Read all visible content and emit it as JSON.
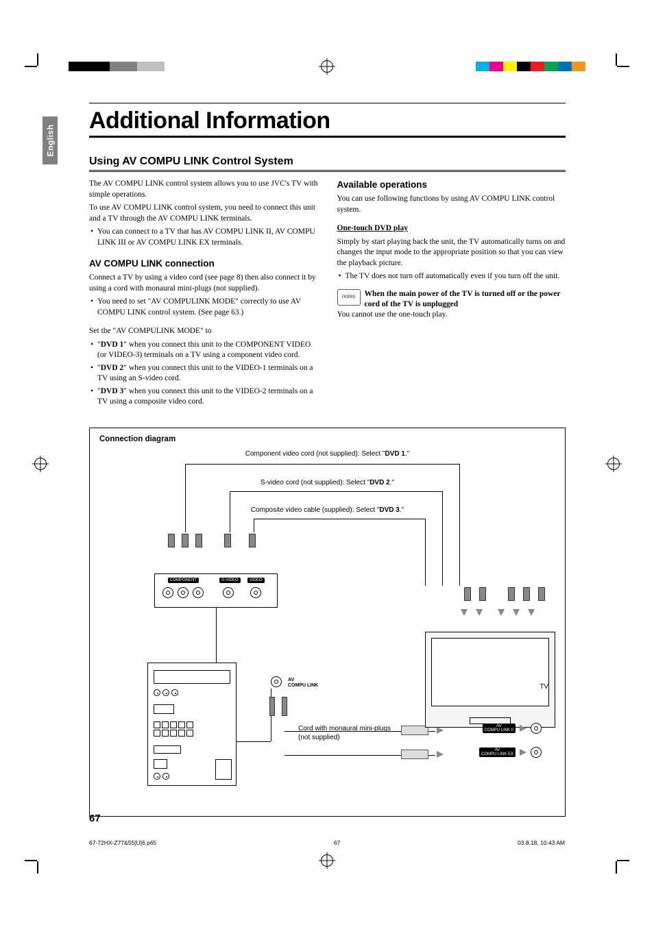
{
  "meta": {
    "language_tab": "English",
    "page_number": "67",
    "footer_file": "67-72HX-Z77&55[U]6.p65",
    "footer_page": "67",
    "footer_timestamp": "03.8.18, 10:43 AM"
  },
  "colorbars": {
    "left": [
      "#000000",
      "#000000",
      "#000000",
      "#808080",
      "#808080",
      "#c0c0c0",
      "#c0c0c0",
      "#ffffff"
    ],
    "right": [
      "#00aeef",
      "#ec008c",
      "#fff200",
      "#000000",
      "#ed1c24",
      "#00a651",
      "#0072bc",
      "#f7941d"
    ]
  },
  "title": "Additional Information",
  "section_title": "Using AV COMPU LINK Control System",
  "left_col": {
    "intro1": "The AV COMPU LINK control system allows you to use JVC's TV with simple operations.",
    "intro2": "To use AV COMPU LINK control system, you need to connect this unit and a TV through the AV COMPU LINK terminals.",
    "intro_bullet": "You can connect to a TV that has AV COMPU LINK II, AV COMPU LINK III or AV COMPU LINK EX terminals.",
    "sub1_title": "AV COMPU LINK connection",
    "sub1_p1": "Connect a TV by using a video cord (see page 8) then also connect it by using a cord with monaural mini-plugs (not supplied).",
    "sub1_bullet": "You need to set \"AV COMPULINK MODE\" correctly to use AV COMPU LINK control system. (See page 63.)",
    "set_intro": "Set the \"AV COMPULINK MODE\" to",
    "dvd1_label": "DVD 1",
    "dvd1_text": "\" when you connect this unit to the COMPONENT VIDEO (or VIDEO-3) terminals on a TV using a component video cord.",
    "dvd2_label": "DVD 2",
    "dvd2_text": "\" when you connect this unit to the VIDEO-1 terminals on a TV using an S-video cord.",
    "dvd3_label": "DVD 3",
    "dvd3_text": "\" when you connect this unit to the VIDEO-2 terminals on a TV using a composite video cord."
  },
  "right_col": {
    "sub_title": "Available operations",
    "p1": "You can use following functions by using AV COMPU LINK control system.",
    "onetouch_title": "One-touch DVD play",
    "onetouch_p": "Simply by start playing back the unit, the TV automatically turns on and changes the input mode to the appropriate position so that you can view the playback picture.",
    "onetouch_bullet": "The TV does not turn off automatically even if you turn off the unit.",
    "note_bold": "When the main power of the TV is turned off or the power cord of the TV is unplugged",
    "note_plain": "You cannot use the one-touch play.",
    "note_icon_text": "notes"
  },
  "diagram": {
    "title": "Connection diagram",
    "cap_component_pre": "Component video cord (not supplied): Select \"",
    "cap_component_bold": "DVD 1",
    "cap_component_post": ".\"",
    "cap_svideo_pre": "S-video cord (not supplied): Select \"",
    "cap_svideo_bold": "DVD 2",
    "cap_svideo_post": ".\"",
    "cap_composite_pre": "Composite video cable (supplied): Select \"",
    "cap_composite_bold": "DVD 3",
    "cap_composite_post": ".\"",
    "label_component": "COMPONENT",
    "label_svideo": "S-VIDEO",
    "label_video": "VIDEO",
    "label_tv": "TV",
    "label_av_compu": "AV\nCOMPU LINK",
    "label_compu_ii": "AV\nCOMPU LINK II",
    "label_compu_ex": "AV\nCOMPU LINK EX",
    "label_miniplug": "Cord with monaural mini-plugs (not supplied)"
  }
}
